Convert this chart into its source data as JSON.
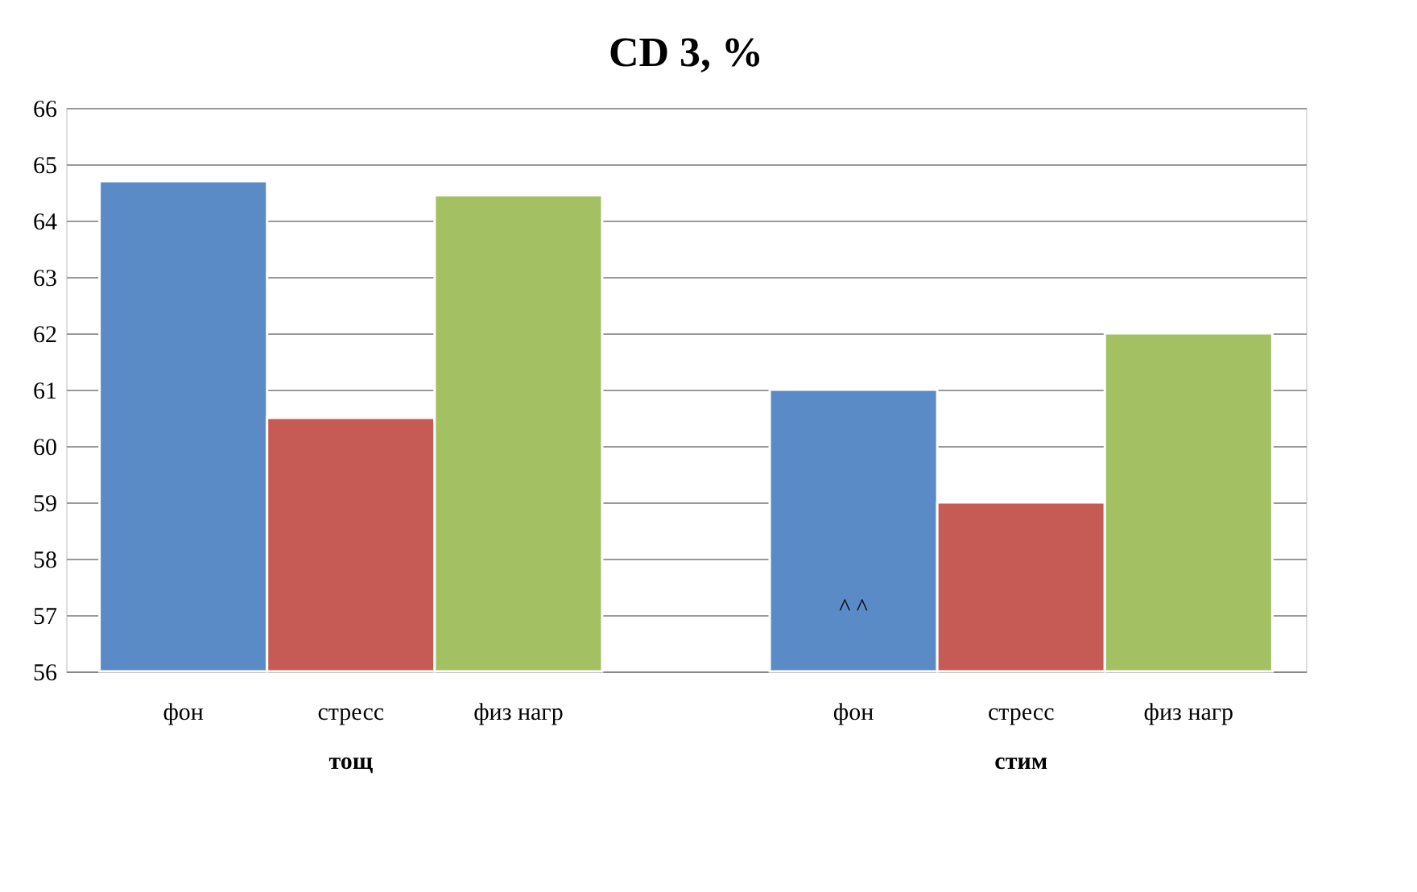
{
  "chart_data": {
    "type": "bar",
    "title": "CD 3, %",
    "categories": [
      "тощ",
      "стим"
    ],
    "series": [
      {
        "name": "фон",
        "color": "#5b8bc6",
        "values": [
          64.7,
          61.0
        ]
      },
      {
        "name": "стресс",
        "color": "#c65a55",
        "values": [
          60.5,
          59.0
        ]
      },
      {
        "name": "физ нагр",
        "color": "#a3c163",
        "values": [
          64.45,
          62.0
        ]
      }
    ],
    "ylim": [
      56,
      66
    ],
    "yticks": [
      56,
      57,
      58,
      59,
      60,
      61,
      62,
      63,
      64,
      65,
      66
    ],
    "grid": "y",
    "legend": false,
    "annotations": [
      "^ ^"
    ]
  }
}
